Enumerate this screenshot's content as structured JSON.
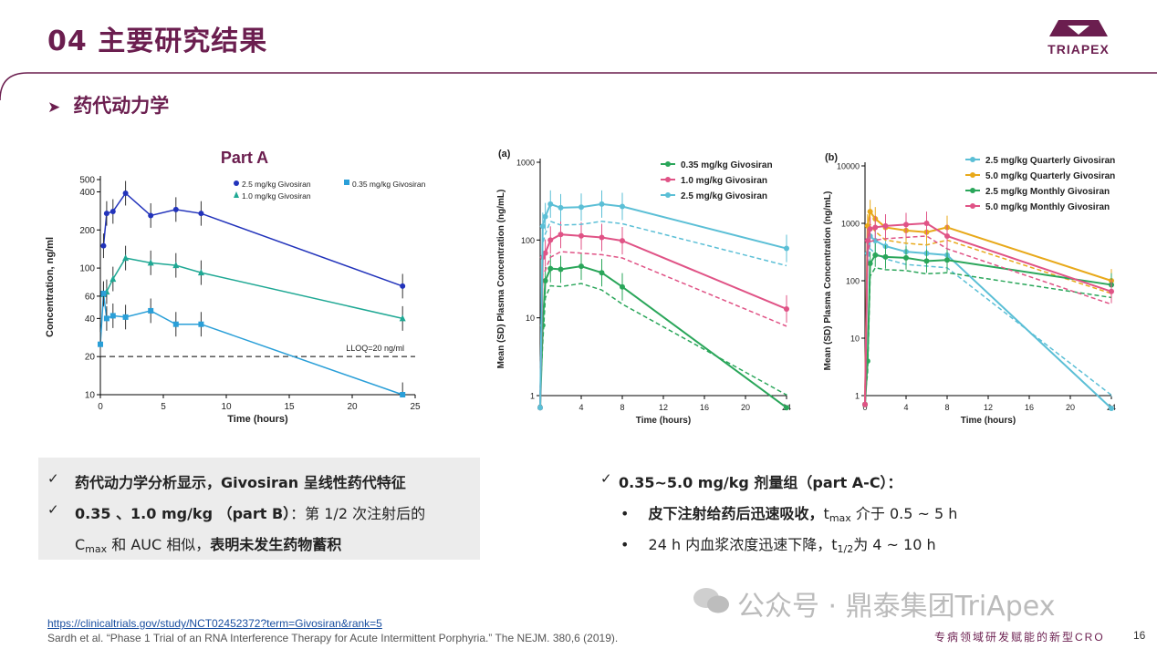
{
  "header": {
    "title": "04 主要研究结果",
    "logo_text": "TRIAPEX",
    "section": "药代动力学"
  },
  "chart_data": [
    {
      "type": "line",
      "title": "Part A",
      "xlabel": "Time (hours)",
      "ylabel": "Concentration, ng/ml",
      "yscale": "log",
      "xlim": [
        0,
        25
      ],
      "ylim": [
        10,
        500
      ],
      "xticks": [
        "0",
        "5",
        "10",
        "15",
        "20",
        "25"
      ],
      "yticks": [
        "10",
        "20",
        "40",
        "60",
        "100",
        "200",
        "400",
        "500"
      ],
      "reference_line": {
        "value": 20,
        "label": "LLOQ=20 ng/ml"
      },
      "series": [
        {
          "name": "2.5 mg/kg Givosiran",
          "color": "#2233bb",
          "marker": "circle",
          "x": [
            0.25,
            0.5,
            1,
            2,
            4,
            6,
            8,
            24
          ],
          "y": [
            150,
            270,
            280,
            390,
            260,
            290,
            270,
            72
          ]
        },
        {
          "name": "1.0 mg/kg Givosiran",
          "color": "#1fa894",
          "marker": "triangle",
          "x": [
            0.25,
            0.5,
            1,
            2,
            4,
            6,
            8,
            24
          ],
          "y": [
            62,
            65,
            82,
            120,
            110,
            105,
            92,
            40
          ]
        },
        {
          "name": "0.35 mg/kg Givosiran",
          "color": "#2a9fd8",
          "marker": "square",
          "x": [
            0,
            0.25,
            0.5,
            1,
            2,
            4,
            6,
            8,
            24
          ],
          "y": [
            25,
            63,
            40,
            42,
            41,
            46,
            36,
            36,
            10
          ]
        }
      ]
    },
    {
      "type": "line",
      "title": "(a)",
      "xlabel": "Time (hours)",
      "ylabel": "Mean (SD) Plasma Concentration (ng/mL)",
      "yscale": "log",
      "xlim": [
        0,
        24
      ],
      "ylim": [
        1,
        1000
      ],
      "xticks": [
        "0",
        "4",
        "8",
        "12",
        "16",
        "20",
        "24"
      ],
      "yticks": [
        "1",
        "10",
        "100",
        "1000"
      ],
      "series": [
        {
          "name": "0.35 mg/kg Givosiran",
          "color": "#2aa65a",
          "x": [
            0,
            0.25,
            0.5,
            1,
            2,
            4,
            6,
            8,
            24
          ],
          "y": [
            0.7,
            8,
            30,
            43,
            42,
            46,
            38,
            25,
            0.7
          ]
        },
        {
          "name": "1.0 mg/kg Givosiran",
          "color": "#e05386",
          "x": [
            0,
            0.25,
            0.5,
            1,
            2,
            4,
            6,
            8,
            24
          ],
          "y": [
            0.7,
            60,
            68,
            100,
            118,
            113,
            108,
            98,
            13
          ]
        },
        {
          "name": "2.5 mg/kg Givosiran",
          "color": "#5bbfd6",
          "x": [
            0,
            0.25,
            0.5,
            1,
            2,
            4,
            6,
            8,
            24
          ],
          "y": [
            0.7,
            150,
            200,
            290,
            260,
            265,
            290,
            270,
            78
          ]
        }
      ]
    },
    {
      "type": "line",
      "title": "(b)",
      "xlabel": "Time (hours)",
      "ylabel": "Mean (SD) Plasma Concentration (ng/mL)",
      "yscale": "log",
      "xlim": [
        0,
        24
      ],
      "ylim": [
        1,
        10000
      ],
      "xticks": [
        "0",
        "4",
        "8",
        "12",
        "16",
        "20",
        "24"
      ],
      "yticks": [
        "1",
        "10",
        "100",
        "1000",
        "10000"
      ],
      "series": [
        {
          "name": "2.5 mg/kg Quarterly Givosiran",
          "color": "#5bbfd6",
          "x": [
            0,
            0.25,
            0.5,
            1,
            2,
            4,
            6,
            8,
            24
          ],
          "y": [
            0.7,
            300,
            600,
            500,
            400,
            320,
            300,
            280,
            0.6
          ]
        },
        {
          "name": "5.0 mg/kg Quarterly Givosiran",
          "color": "#e8a91a",
          "x": [
            0,
            0.25,
            0.5,
            1,
            2,
            4,
            6,
            8,
            24
          ],
          "y": [
            0.7,
            900,
            1600,
            1200,
            850,
            750,
            700,
            850,
            100
          ]
        },
        {
          "name": "2.5 mg/kg Monthly Givosiran",
          "color": "#2aa65a",
          "x": [
            0,
            0.25,
            0.5,
            1,
            2,
            4,
            6,
            8,
            24
          ],
          "y": [
            0.7,
            4,
            200,
            280,
            260,
            250,
            220,
            230,
            85
          ]
        },
        {
          "name": "5.0 mg/kg Monthly Givosiran",
          "color": "#e05386",
          "x": [
            0,
            0.25,
            0.5,
            1,
            2,
            4,
            6,
            8,
            24
          ],
          "y": [
            0.7,
            500,
            800,
            850,
            900,
            950,
            1000,
            600,
            65
          ]
        }
      ]
    }
  ],
  "left_bullets": {
    "b1": "药代动力学分析显示，Givosiran 呈线性药代特征",
    "b2_bold": "0.35 、1.0 mg/kg （part B）",
    "b2_rest": "：第 1/2 次注射后的",
    "b3_c": "C",
    "b3_sub": "max",
    "b3_mid": " 和 AUC 相似，",
    "b3_bold": "表明未发生药物蓄积"
  },
  "right_bullets": {
    "head": "0.35~5.0 mg/kg 剂量组（part A-C）：",
    "d1_bold": "皮下注射给药后迅速吸收，",
    "d1_t": "t",
    "d1_sub": "max",
    "d1_rest": " 介于 0.5 ~ 5 h",
    "d2_a": "24 h 内血浆浓度迅速下降，t",
    "d2_sub": "1/2",
    "d2_rest": "为 4 ~ 10 h"
  },
  "footer": {
    "url": "https://clinicaltrials.gov/study/NCT02452372?term=Givosiran&rank=5",
    "reference": "Sardh et al. “Phase 1 Trial of an RNA Interference Therapy for Acute Intermittent Porphyria.” The NEJM. 380,6 (2019).",
    "watermark": "公众号 · 鼎泰集团TriApex",
    "tagline": "专病领域研发赋能的新型CRO",
    "page_number": "16"
  }
}
